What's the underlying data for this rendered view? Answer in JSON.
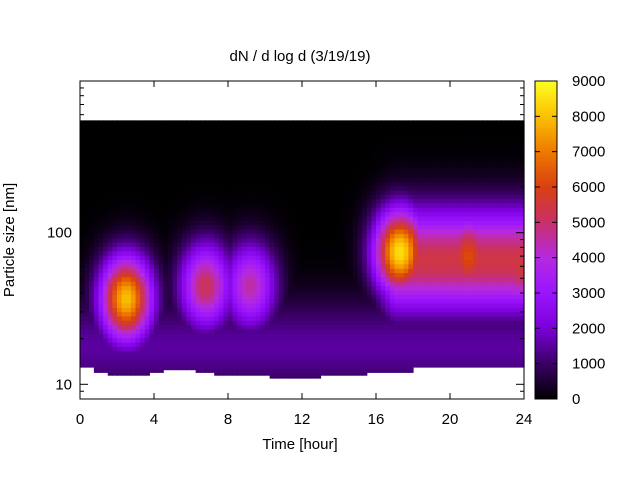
{
  "chart_data": {
    "type": "heatmap",
    "title": "dN / d log d (3/19/19)",
    "xlabel": "Time [hour]",
    "ylabel": "Particle size [nm]",
    "xlim": [
      0,
      24
    ],
    "ylim": [
      8,
      1000
    ],
    "y_scale": "log",
    "x_ticks": [
      0,
      4,
      8,
      12,
      16,
      20,
      24
    ],
    "x_tick_labels": [
      "0",
      "4",
      "8",
      "12",
      "16",
      "20",
      "24"
    ],
    "y_ticks": [
      10,
      100
    ],
    "y_tick_labels": [
      "10",
      "100"
    ],
    "colorbar": {
      "range": [
        0,
        9000
      ],
      "ticks": [
        0,
        1000,
        2000,
        3000,
        4000,
        5000,
        6000,
        7000,
        8000,
        9000
      ],
      "tick_labels": [
        "0",
        "1000",
        "2000",
        "3000",
        "4000",
        "5000",
        "6000",
        "7000",
        "8000",
        "9000"
      ],
      "colormap": [
        "#000000",
        "#3a0065",
        "#7a00d8",
        "#9a14ff",
        "#b52ae0",
        "#c8306a",
        "#d94010",
        "#ee7a00",
        "#fbc000",
        "#ffff22"
      ]
    },
    "data_top_nm": 550,
    "lower_cutoff_nm": [
      [
        0,
        13
      ],
      [
        0.8,
        12
      ],
      [
        1.6,
        11.5
      ],
      [
        3.8,
        12
      ],
      [
        4.4,
        12.5
      ],
      [
        6.2,
        12
      ],
      [
        7.2,
        11.5
      ],
      [
        9.8,
        11.5
      ],
      [
        10.3,
        11
      ],
      [
        11.5,
        11
      ],
      [
        13,
        11.5
      ],
      [
        15,
        11.5
      ],
      [
        15.5,
        12
      ],
      [
        17,
        12
      ],
      [
        18,
        13
      ],
      [
        24,
        13
      ]
    ],
    "features": [
      {
        "t": 2.5,
        "size_nm": 37,
        "peak": 8000
      },
      {
        "t": 6.8,
        "size_nm": 45,
        "peak": 5200
      },
      {
        "t": 9.2,
        "size_nm": 45,
        "peak": 4500
      },
      {
        "t": 17.3,
        "size_nm": 75,
        "peak": 8500
      },
      {
        "t": 21.0,
        "size_nm": 70,
        "peak": 6200
      },
      {
        "t": 23.8,
        "size_nm": 60,
        "peak": 5500
      }
    ],
    "grid": false,
    "legend": "none"
  }
}
